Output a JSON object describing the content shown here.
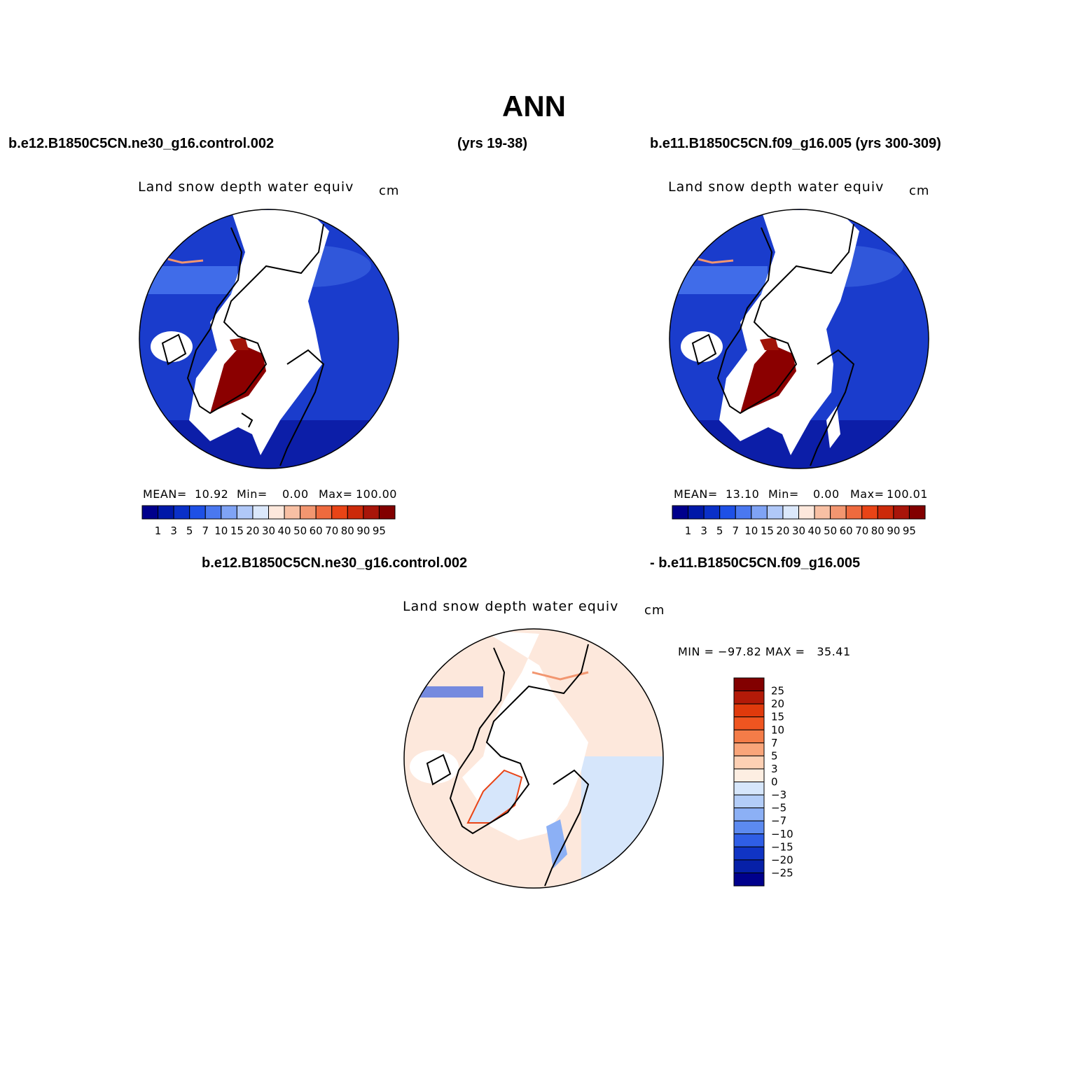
{
  "title": "ANN",
  "header": {
    "case1": "b.e12.B1850C5CN.ne30_g16.control.002",
    "case1_years": "(yrs 19-38)",
    "case2": "b.e11.B1850C5CN.f09_g16.005 (yrs 300-309)",
    "diff_case1": "b.e12.B1850C5CN.ne30_g16.control.002",
    "diff_case2": "- b.e11.B1850C5CN.f09_g16.005"
  },
  "panels": [
    {
      "id": "left",
      "title": "Land snow depth water equiv",
      "units": "cm",
      "stats": {
        "mean_label": "MEAN=",
        "mean": "10.92",
        "min_label": "Min=",
        "min": "0.00",
        "max_label": "Max=",
        "max": "100.00"
      }
    },
    {
      "id": "right",
      "title": "Land snow depth water equiv",
      "units": "cm",
      "stats": {
        "mean_label": "MEAN=",
        "mean": "13.10",
        "min_label": "Min=",
        "min": "0.00",
        "max_label": "Max=",
        "max": "100.01"
      }
    },
    {
      "id": "diff",
      "title": "Land snow depth water equiv",
      "units": "cm",
      "stats": {
        "text": "MIN = −97.82 MAX =   35.41"
      }
    }
  ],
  "colorbar_abs": {
    "labels": [
      "1",
      "3",
      "5",
      "7",
      "10",
      "15",
      "20",
      "30",
      "40",
      "50",
      "60",
      "70",
      "80",
      "90",
      "95"
    ],
    "colors": [
      "#00008c",
      "#0018a8",
      "#0a30c8",
      "#1e50e6",
      "#4a78f0",
      "#7fa3f5",
      "#b0c8f8",
      "#dbe8fb",
      "#fde8dc",
      "#f8c0a4",
      "#f29670",
      "#ee6a3e",
      "#e94416",
      "#cc2a0a",
      "#a8150a",
      "#820000"
    ]
  },
  "colorbar_diff": {
    "labels": [
      "25",
      "20",
      "15",
      "10",
      "7",
      "5",
      "3",
      "0",
      "−3",
      "−5",
      "−7",
      "−10",
      "−15",
      "−20",
      "−25"
    ],
    "colors": [
      "#820000",
      "#b31a08",
      "#e03a0c",
      "#ef5520",
      "#f47c48",
      "#f9a57a",
      "#fdd0b4",
      "#fdeee2",
      "#d6e6fb",
      "#b3cdf8",
      "#8cb0f5",
      "#5c8af0",
      "#2f5ee6",
      "#1034c4",
      "#0620a8",
      "#00008c"
    ]
  }
}
